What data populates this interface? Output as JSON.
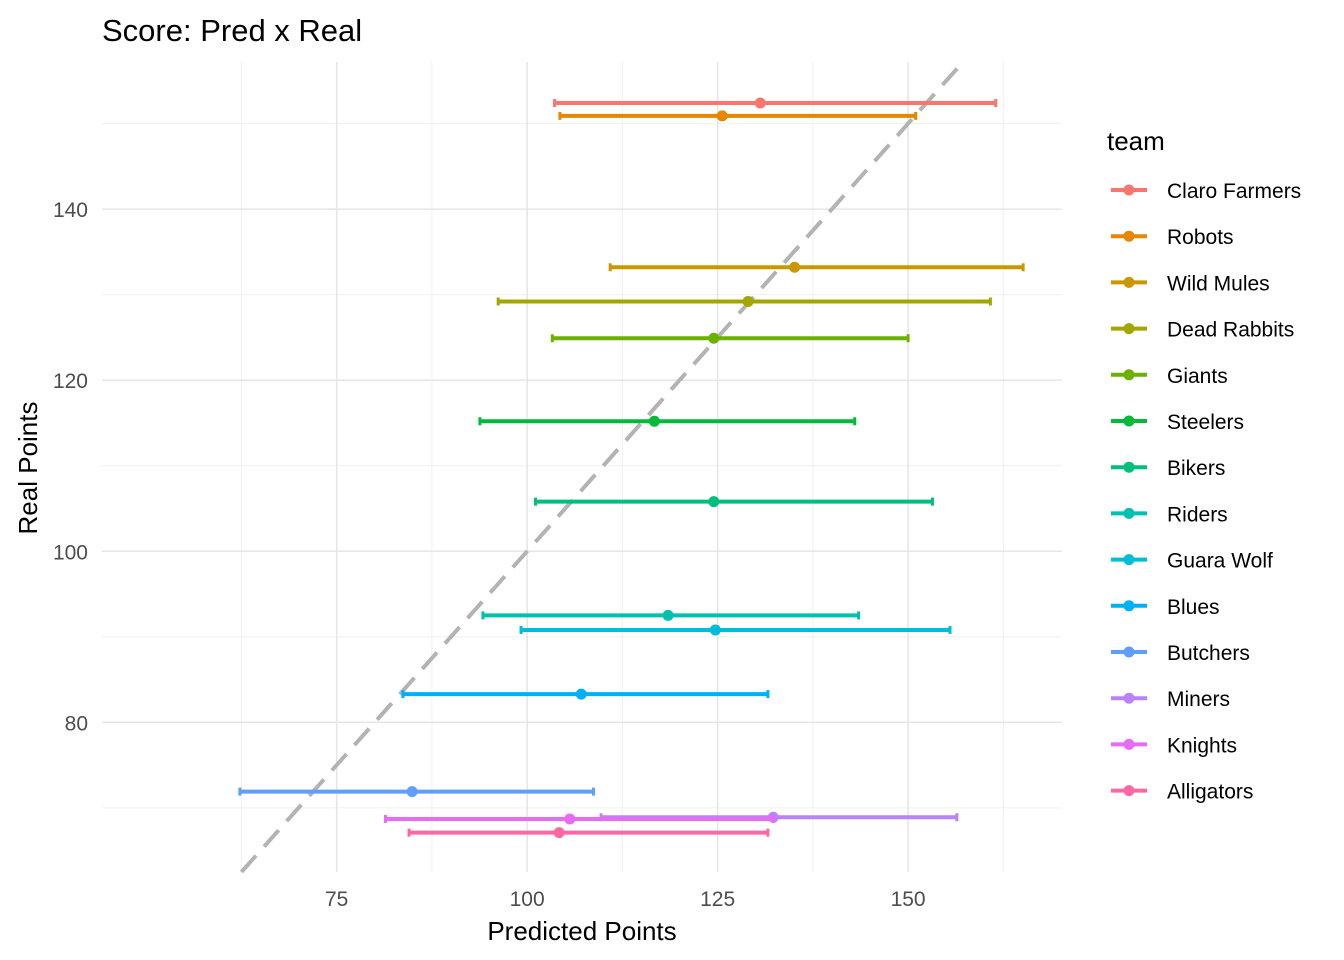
{
  "chart_data": {
    "type": "errorbar-scatter",
    "title": "Score: Pred x Real",
    "xlabel": "Predicted Points",
    "ylabel": "Real Points",
    "xlim": [
      44.2,
      170.2
    ],
    "ylim": [
      62.5,
      157.2
    ],
    "xticks": [
      75,
      100,
      125,
      150
    ],
    "yticks": [
      80,
      100,
      120,
      140
    ],
    "xminor": [
      62.5,
      87.5,
      112.5,
      137.5,
      162.5
    ],
    "yminor": [
      70,
      90,
      110,
      130,
      150
    ],
    "grid": true,
    "reference_line": "y = x (dashed, grey)",
    "legend": {
      "title": "team",
      "placement": "right"
    },
    "series": [
      {
        "name": "Claro Farmers",
        "color": "#F8766D",
        "pred": 130.6,
        "pred_min": 103.6,
        "pred_max": 161.5,
        "real": 152.4
      },
      {
        "name": "Robots",
        "color": "#E58700",
        "pred": 125.6,
        "pred_min": 104.3,
        "pred_max": 151.0,
        "real": 150.9
      },
      {
        "name": "Wild Mules",
        "color": "#C99800",
        "pred": 135.1,
        "pred_min": 110.9,
        "pred_max": 165.1,
        "real": 133.2
      },
      {
        "name": "Dead Rabbits",
        "color": "#A3A500",
        "pred": 129.0,
        "pred_min": 96.2,
        "pred_max": 160.8,
        "real": 129.2
      },
      {
        "name": "Giants",
        "color": "#6BB100",
        "pred": 124.5,
        "pred_min": 103.3,
        "pred_max": 150.0,
        "real": 124.9
      },
      {
        "name": "Steelers",
        "color": "#00BA38",
        "pred": 116.7,
        "pred_min": 93.8,
        "pred_max": 143.0,
        "real": 115.2
      },
      {
        "name": "Bikers",
        "color": "#00BF7D",
        "pred": 124.5,
        "pred_min": 101.1,
        "pred_max": 153.2,
        "real": 105.8
      },
      {
        "name": "Riders",
        "color": "#00C0AF",
        "pred": 118.5,
        "pred_min": 94.2,
        "pred_max": 143.5,
        "real": 92.5
      },
      {
        "name": "Guara Wolf",
        "color": "#00BCD8",
        "pred": 124.7,
        "pred_min": 99.2,
        "pred_max": 155.5,
        "real": 90.8
      },
      {
        "name": "Blues",
        "color": "#00B0F6",
        "pred": 107.1,
        "pred_min": 83.7,
        "pred_max": 131.6,
        "real": 83.3
      },
      {
        "name": "Butchers",
        "color": "#619CFF",
        "pred": 84.9,
        "pred_min": 62.3,
        "pred_max": 108.7,
        "real": 71.9
      },
      {
        "name": "Miners",
        "color": "#B983FF",
        "pred": 132.3,
        "pred_min": 109.7,
        "pred_max": 156.4,
        "real": 68.9
      },
      {
        "name": "Knights",
        "color": "#E76BF3",
        "pred": 105.6,
        "pred_min": 81.4,
        "pred_max": 132.3,
        "real": 68.7
      },
      {
        "name": "Alligators",
        "color": "#FF67A4",
        "pred": 104.2,
        "pred_min": 84.5,
        "pred_max": 131.6,
        "real": 67.1
      }
    ]
  }
}
